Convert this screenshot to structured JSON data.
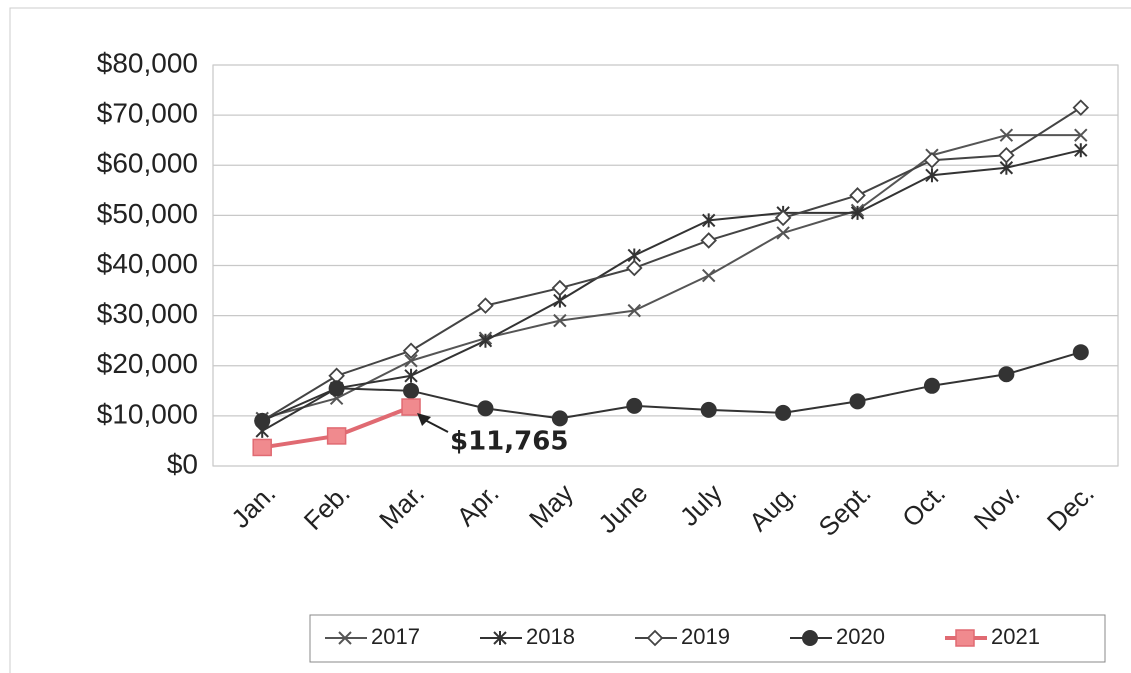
{
  "chart_data": {
    "type": "line",
    "categories": [
      "Jan.",
      "Feb.",
      "Mar.",
      "Apr.",
      "May",
      "June",
      "July",
      "Aug.",
      "Sept.",
      "Oct.",
      "Nov.",
      "Dec."
    ],
    "series": [
      {
        "name": "2017",
        "color": "#555555",
        "marker": "x",
        "values": [
          9500,
          13500,
          21000,
          25500,
          29000,
          31000,
          38000,
          46500,
          51000,
          62000,
          66000,
          66000
        ]
      },
      {
        "name": "2018",
        "color": "#333333",
        "marker": "star",
        "values": [
          7000,
          15500,
          18000,
          25000,
          33000,
          42000,
          49000,
          50500,
          50500,
          58000,
          59500,
          63000
        ]
      },
      {
        "name": "2019",
        "color": "#444444",
        "marker": "diamond",
        "values": [
          9000,
          18000,
          23000,
          32000,
          35500,
          39500,
          45000,
          49500,
          54000,
          61000,
          62000,
          71500
        ]
      },
      {
        "name": "2020",
        "color": "#333333",
        "marker": "circle",
        "values": [
          9000,
          15500,
          15000,
          11500,
          9500,
          12000,
          11200,
          10600,
          12900,
          16000,
          18300,
          22700
        ]
      },
      {
        "name": "2021",
        "color": "#e06a72",
        "marker": "square",
        "values": [
          3700,
          6000,
          11765,
          null,
          null,
          null,
          null,
          null,
          null,
          null,
          null,
          null
        ]
      }
    ],
    "annotation": {
      "text": "$11,765"
    },
    "ylim": [
      0,
      80000
    ],
    "yticks": [
      {
        "value": 0,
        "label": "$0"
      },
      {
        "value": 10000,
        "label": "$10,000"
      },
      {
        "value": 20000,
        "label": "$20,000"
      },
      {
        "value": 30000,
        "label": "$30,000"
      },
      {
        "value": 40000,
        "label": "$40,000"
      },
      {
        "value": 50000,
        "label": "$50,000"
      },
      {
        "value": 60000,
        "label": "$60,000"
      },
      {
        "value": 70000,
        "label": "$70,000"
      },
      {
        "value": 80000,
        "label": "$80,000"
      }
    ],
    "grid": true,
    "legend": "bottom"
  }
}
